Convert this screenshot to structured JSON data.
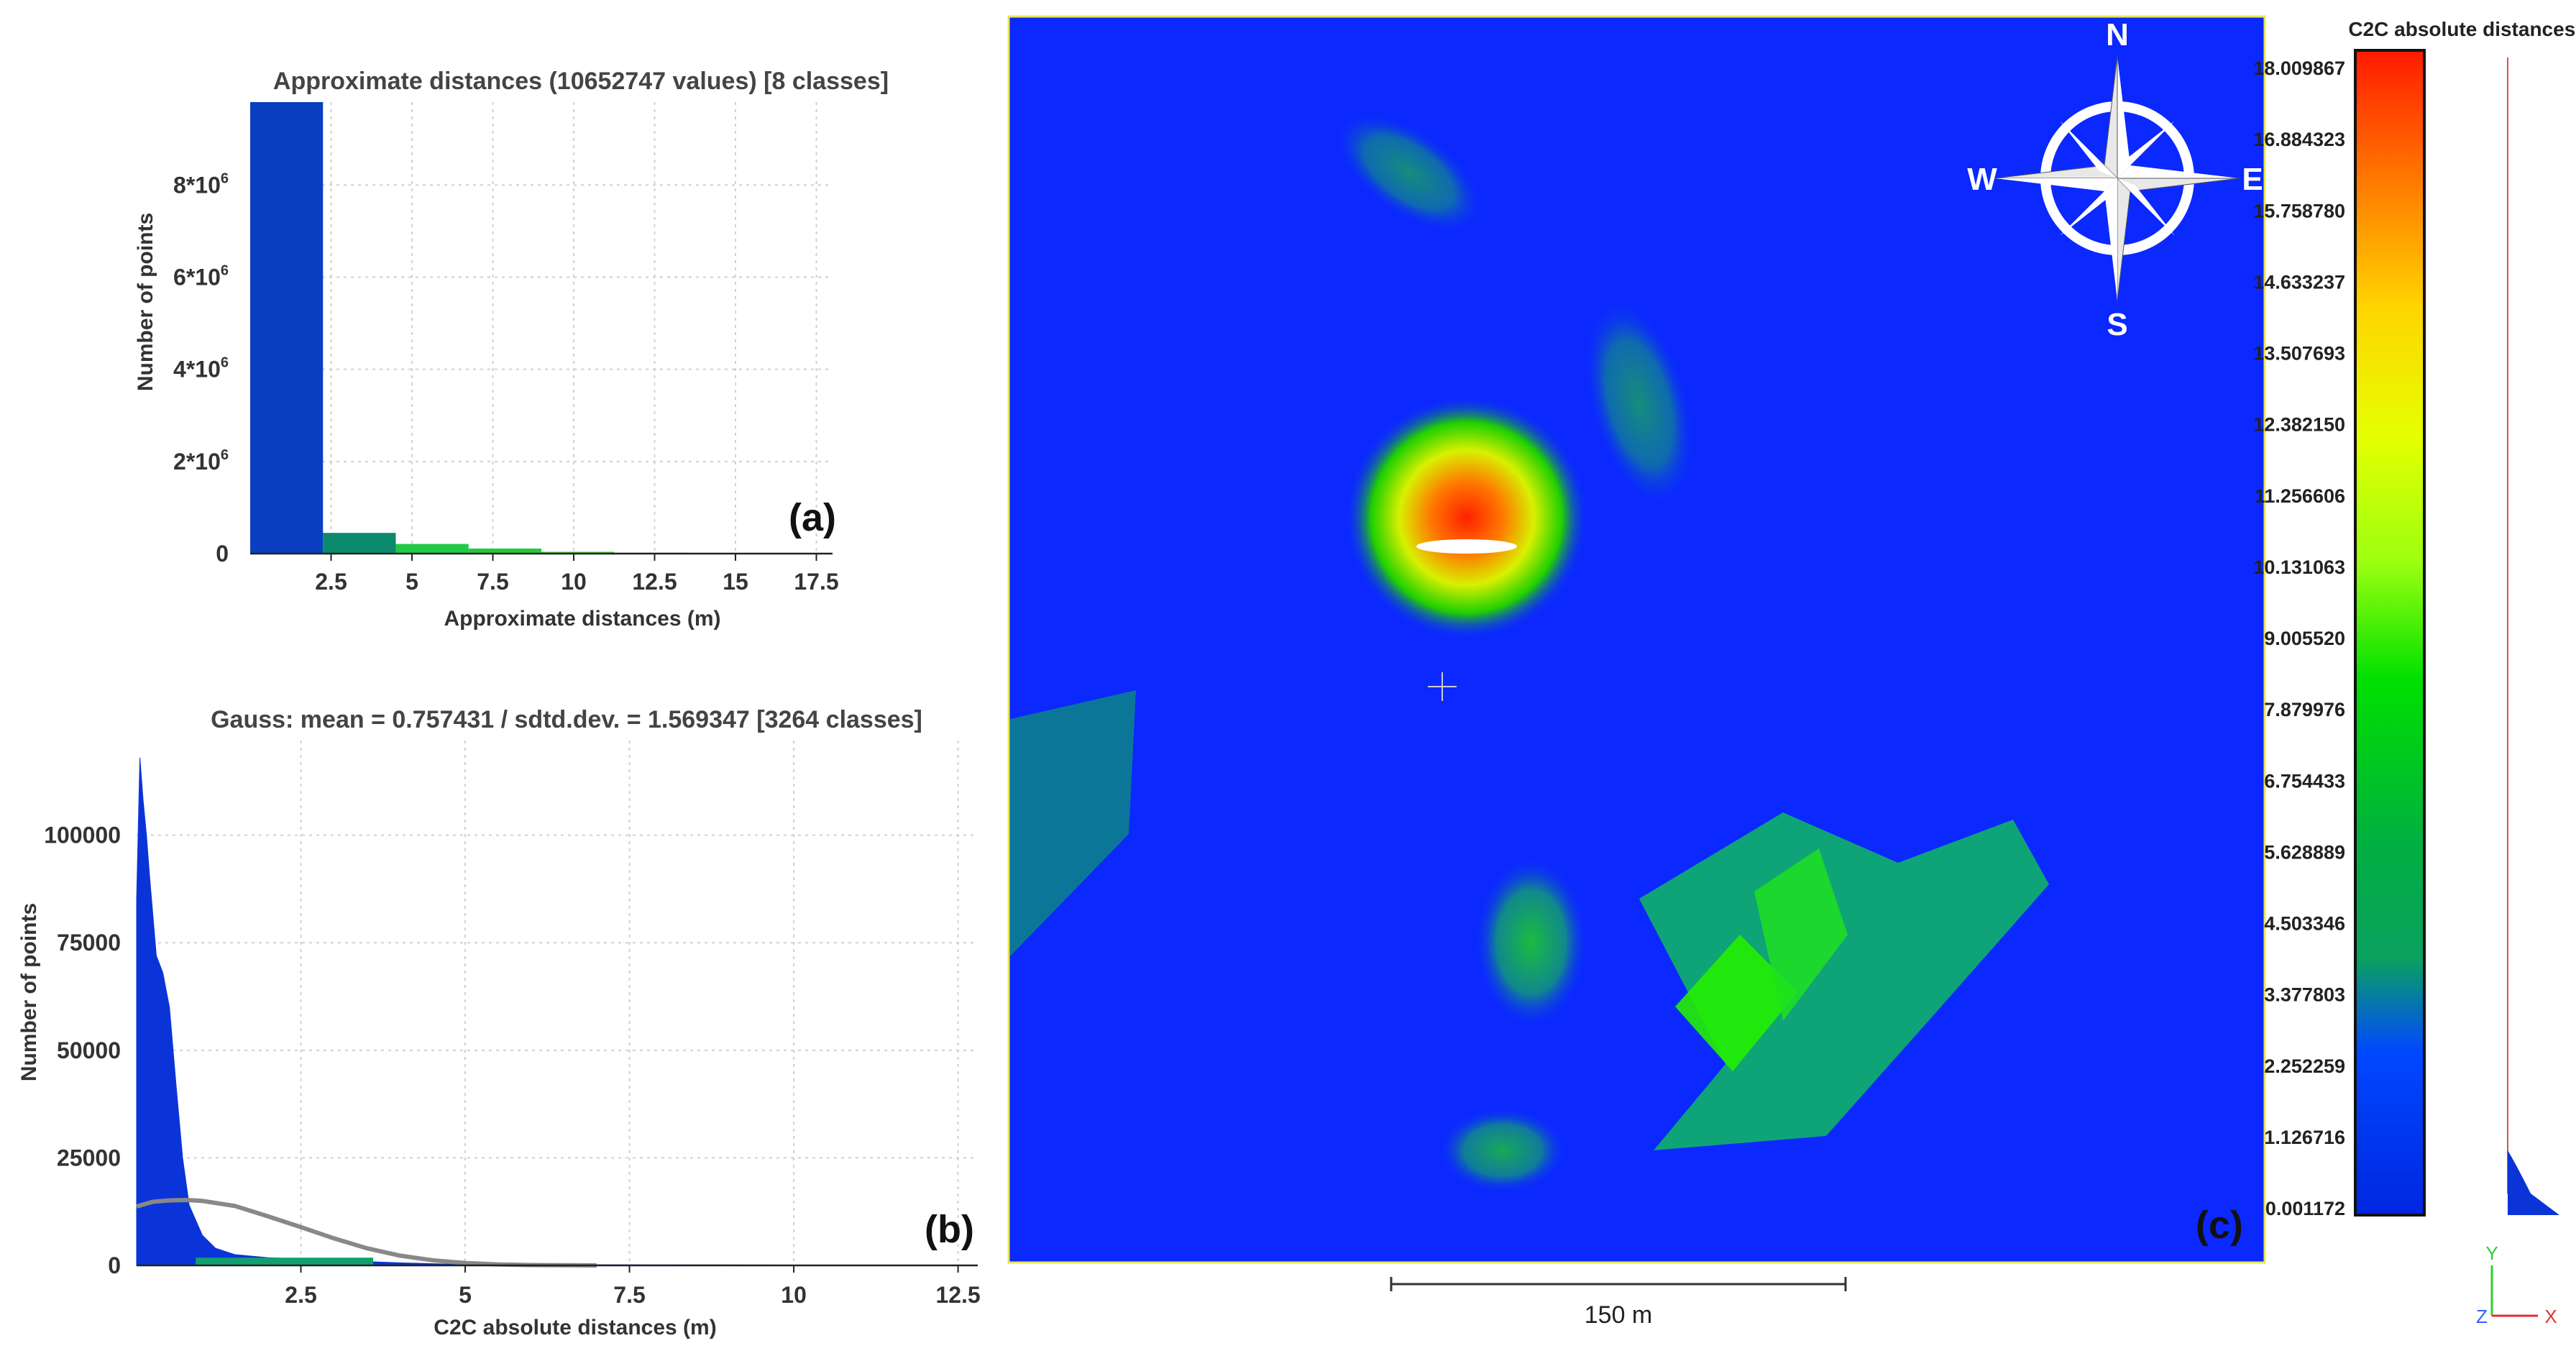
{
  "chart_data": [
    {
      "type": "bar",
      "title": "Approximate distances (10652747 values) [8 classes]",
      "xlabel": "Approximate distances (m)",
      "ylabel": "Number of points",
      "panel_label": "(a)",
      "categories": [
        "0-2.25",
        "2.25-4.5",
        "4.5-6.75",
        "6.75-9",
        "9-11.25",
        "11.25-13.5",
        "13.5-15.75",
        "15.75-18"
      ],
      "bin_edges": [
        0,
        2.25,
        4.5,
        6.75,
        9,
        11.25,
        13.5,
        15.75,
        18
      ],
      "values": [
        9800000,
        450000,
        210000,
        110000,
        40000,
        20000,
        15000,
        10000
      ],
      "bar_colors": [
        "#0a3fc0",
        "#0b8a6e",
        "#22c94a",
        "#27c93a",
        "#5bc43a",
        "#8ac32e",
        "#d8a820",
        "#e05a10"
      ],
      "xlim": [
        0,
        18
      ],
      "ylim": [
        0,
        9800000
      ],
      "xticks": [
        2.5,
        5,
        7.5,
        10,
        12.5,
        15,
        17.5
      ],
      "xtick_labels": [
        "2.5",
        "5",
        "7.5",
        "10",
        "12.5",
        "15",
        "17.5"
      ],
      "yticks": [
        0,
        2000000,
        4000000,
        6000000,
        8000000
      ],
      "ytick_labels": [
        "0",
        "2*10",
        "4*10",
        "6*10",
        "8*10"
      ],
      "ytick_exponents": [
        "",
        "6",
        "6",
        "6",
        "6"
      ],
      "grid": true
    },
    {
      "type": "area",
      "title": "Gauss: mean = 0.757431 / sdtd.dev. = 1.569347 [3264 classes]",
      "xlabel": "C2C absolute distances (m)",
      "ylabel": "Number of points",
      "panel_label": "(b)",
      "series": [
        {
          "x": [
            0,
            0.05,
            0.1,
            0.15,
            0.2,
            0.3,
            0.4,
            0.5,
            0.6,
            0.7,
            0.8,
            1.0,
            1.2,
            1.5,
            2.0,
            2.5,
            3.0,
            3.5,
            4.0,
            5.0,
            12.8
          ],
          "values": [
            85000,
            118000,
            108000,
            100000,
            90000,
            72000,
            68000,
            60000,
            42000,
            25000,
            14000,
            7000,
            4000,
            2500,
            1800,
            1500,
            1200,
            900,
            600,
            200,
            0
          ],
          "color": "#0a34d8"
        },
        {
          "x": [
            0,
            0.25,
            0.5,
            0.757431,
            1.0,
            1.5,
            2.0,
            2.5,
            3.0,
            3.5,
            4.0,
            4.5,
            5.0,
            5.5,
            6.0,
            7.0
          ],
          "values": [
            13700,
            14800,
            15100,
            15200,
            15000,
            13800,
            11400,
            8900,
            6300,
            4000,
            2300,
            1200,
            560,
            230,
            90,
            10
          ],
          "color": "#888888"
        }
      ],
      "xlim": [
        0,
        12.8
      ],
      "ylim": [
        0,
        122000
      ],
      "xticks": [
        2.5,
        5,
        7.5,
        10,
        12.5
      ],
      "xtick_labels": [
        "2.5",
        "5",
        "7.5",
        "10",
        "12.5"
      ],
      "yticks": [
        0,
        25000,
        50000,
        75000,
        100000
      ],
      "ytick_labels": [
        "0",
        "25000",
        "50000",
        "75000",
        "100000"
      ],
      "grid": true
    },
    {
      "type": "heatmap",
      "panel_label": "(c)",
      "colorbar_title": "C2C absolute distances (m)",
      "colorbar_ticks": [
        "18.009867",
        "16.884323",
        "15.758780",
        "14.633237",
        "13.507693",
        "12.382150",
        "11.256606",
        "10.131063",
        "9.005520",
        "7.879976",
        "6.754433",
        "5.628889",
        "4.503346",
        "3.377803",
        "2.252259",
        "1.126716",
        "0.001172"
      ],
      "colorbar_range": [
        0.001172,
        18.009867
      ],
      "colorbar_colors": [
        "#ff1a00",
        "#ff8000",
        "#ffd400",
        "#e6ff00",
        "#9cff10",
        "#00e000",
        "#00b040",
        "#0aa060",
        "#0048ff",
        "#0026e0"
      ],
      "scale_bar_label": "150 m",
      "compass": [
        "N",
        "E",
        "S",
        "W"
      ],
      "background_color": "#0b28ff",
      "axis_labels": [
        "Y",
        "Z",
        "X"
      ]
    }
  ]
}
